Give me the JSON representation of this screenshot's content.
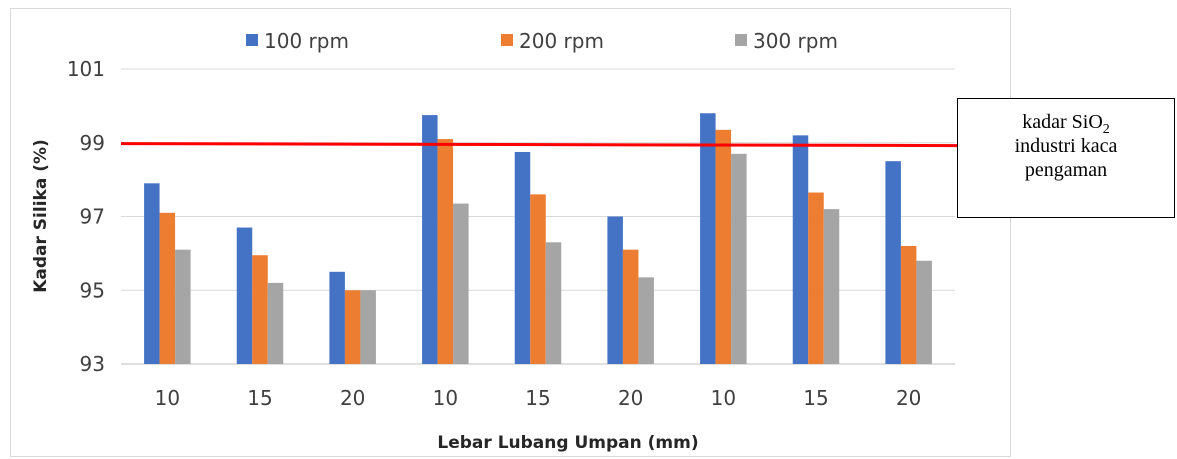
{
  "chart_data": {
    "type": "bar",
    "categories": [
      "10",
      "15",
      "20",
      "10",
      "15",
      "20",
      "10",
      "15",
      "20"
    ],
    "series": [
      {
        "name": "100 rpm",
        "color": "#4472c4",
        "values": [
          97.9,
          96.7,
          95.5,
          99.75,
          98.75,
          97.0,
          99.8,
          99.2,
          98.5
        ]
      },
      {
        "name": "200 rpm",
        "color": "#ed7d31",
        "values": [
          97.1,
          95.95,
          95.0,
          99.1,
          97.6,
          96.1,
          99.35,
          97.65,
          96.2
        ]
      },
      {
        "name": "300 rpm",
        "color": "#a5a5a5",
        "values": [
          96.1,
          95.2,
          95.0,
          97.35,
          96.3,
          95.35,
          98.7,
          97.2,
          95.8
        ]
      }
    ],
    "ylim": [
      93,
      101
    ],
    "yticks": [
      "93",
      "95",
      "97",
      "99",
      "101"
    ],
    "ylabel": "Kadar Silika (%)",
    "xlabel": "Lebar Lubang Umpan (mm)",
    "reference_line": {
      "value": 98.95,
      "color": "#ff0000"
    },
    "grid": true,
    "legend_position": "top"
  },
  "annotation": {
    "line1_prefix": "kadar SiO",
    "line1_subscript": "2",
    "line2": "industri kaca",
    "line3": "pengaman"
  }
}
